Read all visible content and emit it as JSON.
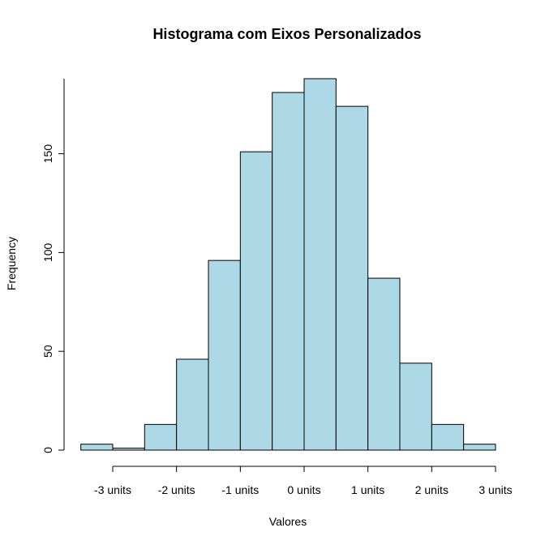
{
  "chart_data": {
    "type": "bar",
    "title": "Histograma com Eixos Personalizados",
    "xlabel": "Valores",
    "ylabel": "Frequency",
    "bin_edges": [
      -3.5,
      -3.0,
      -2.5,
      -2.0,
      -1.5,
      -1.0,
      -0.5,
      0.0,
      0.5,
      1.0,
      1.5,
      2.0,
      2.5,
      3.0
    ],
    "values": [
      3,
      1,
      13,
      46,
      96,
      151,
      181,
      188,
      174,
      87,
      44,
      13,
      3
    ],
    "x_ticks": [
      -3,
      -2,
      -1,
      0,
      1,
      2,
      3
    ],
    "x_tick_labels": [
      "-3 units",
      "-2 units",
      "-1 units",
      "0 units",
      "1 units",
      "2 units",
      "3 units"
    ],
    "y_ticks": [
      0,
      50,
      100,
      150
    ],
    "y_tick_labels": [
      "0",
      "50",
      "100",
      "150"
    ],
    "xlim": [
      -3.5,
      3.0
    ],
    "ylim": [
      0,
      188
    ],
    "bar_fill": "#add8e6",
    "bar_stroke": "#000000",
    "grid": false
  }
}
